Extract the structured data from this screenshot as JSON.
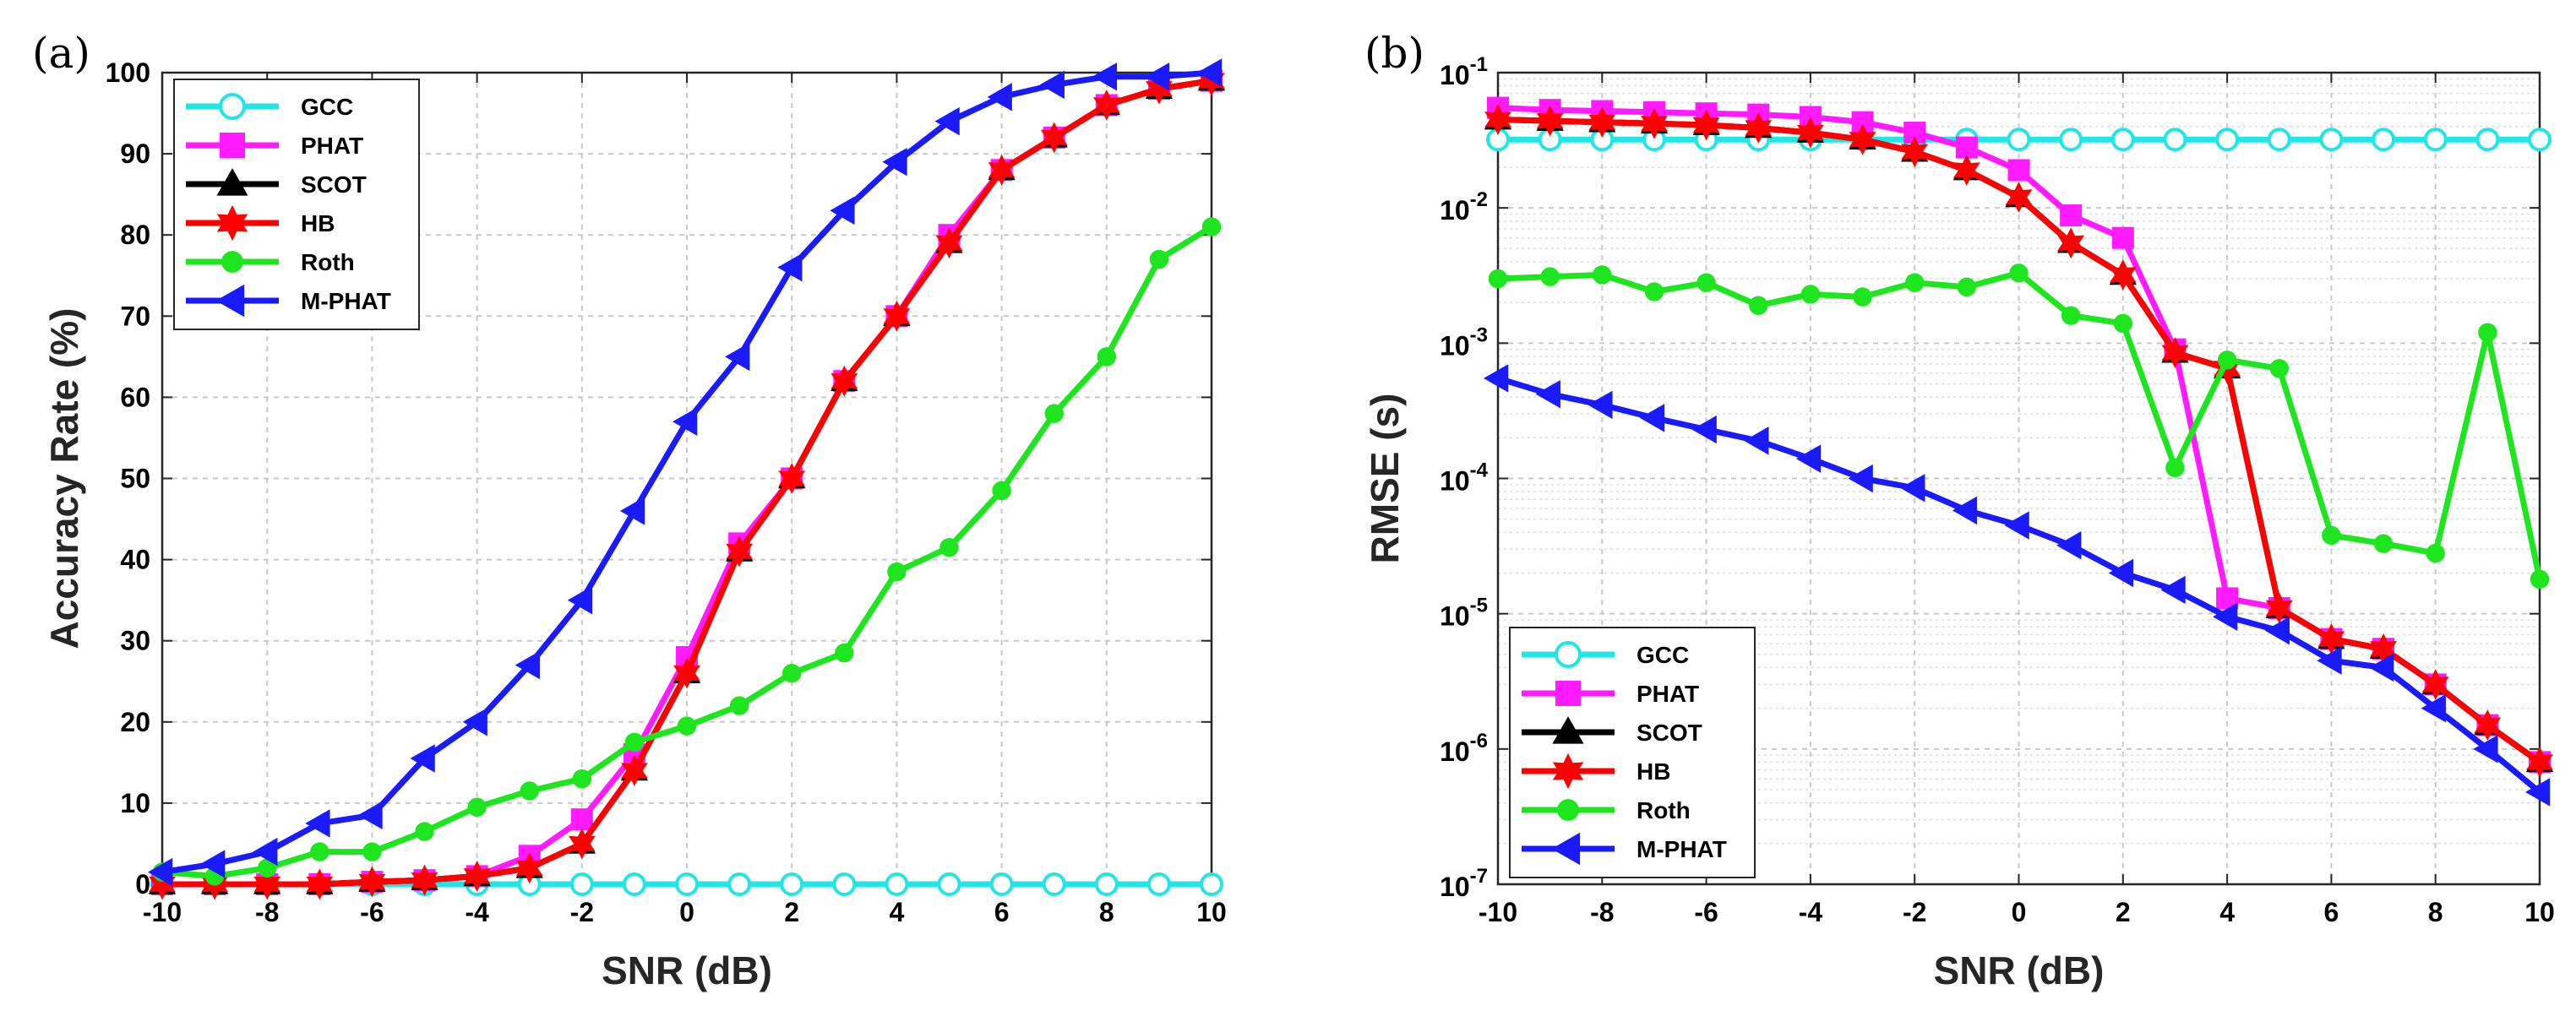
{
  "chart_data": [
    {
      "type": "line",
      "panel_label": "(a)",
      "xlabel": "SNR (dB)",
      "ylabel": "Accuracy Rate (%)",
      "xlim": [
        -10,
        10
      ],
      "ylim": [
        0,
        100
      ],
      "yscale": "linear",
      "grid": true,
      "legend_position": "top-left",
      "x": [
        -10,
        -9,
        -8,
        -7,
        -6,
        -5,
        -4,
        -3,
        -2,
        -1,
        0,
        1,
        2,
        3,
        4,
        5,
        6,
        7,
        8,
        9,
        10
      ],
      "xticks": [
        "-10",
        "-8",
        "-6",
        "-4",
        "-2",
        "0",
        "2",
        "4",
        "6",
        "8",
        "10"
      ],
      "yticks": [
        "0",
        "10",
        "20",
        "30",
        "40",
        "50",
        "60",
        "70",
        "80",
        "90",
        "100"
      ],
      "series": [
        {
          "name": "GCC",
          "color": "#22e5e5",
          "marker": "circle",
          "values": [
            0,
            0,
            0,
            0,
            0,
            0,
            0,
            0,
            0,
            0,
            0,
            0,
            0,
            0,
            0,
            0,
            0,
            0,
            0,
            0,
            0
          ]
        },
        {
          "name": "PHAT",
          "color": "#ff1aff",
          "marker": "square",
          "values": [
            0,
            0,
            0,
            0,
            0.3,
            0.5,
            1,
            3.5,
            8,
            16,
            28,
            42,
            50,
            62,
            70,
            80,
            88,
            92,
            96,
            98,
            99
          ]
        },
        {
          "name": "SCOT",
          "color": "#000000",
          "marker": "triangle-up",
          "values": [
            0,
            0,
            0,
            0,
            0.3,
            0.5,
            1,
            2,
            5,
            14,
            26,
            41,
            50,
            62,
            70,
            79,
            88,
            92,
            96,
            98,
            99
          ]
        },
        {
          "name": "HB",
          "color": "#ff0000",
          "marker": "hexagram",
          "values": [
            0,
            0,
            0,
            0,
            0.3,
            0.5,
            1,
            2,
            5,
            14,
            26,
            41,
            50,
            62,
            70,
            79,
            88,
            92,
            96,
            98,
            99
          ]
        },
        {
          "name": "Roth",
          "color": "#1ee61e",
          "marker": "dot",
          "values": [
            1.5,
            1,
            2,
            4,
            4,
            6.5,
            9.5,
            11.5,
            13,
            17.5,
            19.5,
            22,
            26,
            28.5,
            38.5,
            41.5,
            48.5,
            58,
            65,
            77,
            81
          ]
        },
        {
          "name": "M-PHAT",
          "color": "#1a1aff",
          "marker": "triangle-left",
          "values": [
            1.5,
            2.5,
            4,
            7.5,
            8.5,
            15.5,
            20,
            27,
            35,
            46,
            57,
            65,
            76,
            83,
            89,
            94,
            97,
            98.5,
            99.5,
            99.5,
            100
          ]
        }
      ]
    },
    {
      "type": "line",
      "panel_label": "(b)",
      "xlabel": "SNR (dB)",
      "ylabel": "RMSE (s)",
      "xlim": [
        -10,
        10
      ],
      "ylim": [
        1e-07,
        0.1
      ],
      "yscale": "log",
      "grid": true,
      "legend_position": "bottom-left",
      "x": [
        -10,
        -9,
        -8,
        -7,
        -6,
        -5,
        -4,
        -3,
        -2,
        -1,
        0,
        1,
        2,
        3,
        4,
        5,
        6,
        7,
        8,
        9,
        10
      ],
      "xticks": [
        "-10",
        "-8",
        "-6",
        "-4",
        "-2",
        "0",
        "2",
        "4",
        "6",
        "8",
        "10"
      ],
      "yticks": [
        {
          "base": "10",
          "exp": "-7"
        },
        {
          "base": "10",
          "exp": "-6"
        },
        {
          "base": "10",
          "exp": "-5"
        },
        {
          "base": "10",
          "exp": "-4"
        },
        {
          "base": "10",
          "exp": "-3"
        },
        {
          "base": "10",
          "exp": "-2"
        },
        {
          "base": "10",
          "exp": "-1"
        }
      ],
      "series": [
        {
          "name": "GCC",
          "color": "#22e5e5",
          "marker": "circle",
          "values": [
            0.032,
            0.032,
            0.032,
            0.032,
            0.032,
            0.032,
            0.032,
            0.032,
            0.032,
            0.032,
            0.032,
            0.032,
            0.032,
            0.032,
            0.032,
            0.032,
            0.032,
            0.032,
            0.032,
            0.032,
            0.032
          ]
        },
        {
          "name": "PHAT",
          "color": "#ff1aff",
          "marker": "square",
          "values": [
            0.055,
            0.053,
            0.052,
            0.051,
            0.05,
            0.049,
            0.047,
            0.043,
            0.036,
            0.028,
            0.019,
            0.0088,
            0.006,
            0.0009,
            1.3e-05,
            1.1e-05,
            6.5e-06,
            5.5e-06,
            3e-06,
            1.5e-06,
            8e-07
          ]
        },
        {
          "name": "SCOT",
          "color": "#000000",
          "marker": "triangle-up",
          "values": [
            0.045,
            0.044,
            0.043,
            0.042,
            0.041,
            0.039,
            0.036,
            0.032,
            0.026,
            0.019,
            0.012,
            0.0055,
            0.0032,
            0.00085,
            0.00065,
            1.1e-05,
            6.5e-06,
            5.5e-06,
            3e-06,
            1.5e-06,
            8e-07
          ]
        },
        {
          "name": "HB",
          "color": "#ff0000",
          "marker": "hexagram",
          "values": [
            0.045,
            0.044,
            0.043,
            0.042,
            0.041,
            0.039,
            0.036,
            0.032,
            0.026,
            0.019,
            0.012,
            0.0055,
            0.0032,
            0.00085,
            0.00065,
            1.1e-05,
            6.5e-06,
            5.5e-06,
            3e-06,
            1.5e-06,
            8e-07
          ]
        },
        {
          "name": "Roth",
          "color": "#1ee61e",
          "marker": "dot",
          "values": [
            0.003,
            0.0031,
            0.0032,
            0.0024,
            0.0028,
            0.0019,
            0.0023,
            0.0022,
            0.0028,
            0.0026,
            0.0033,
            0.0016,
            0.0014,
            0.00012,
            0.00075,
            0.00065,
            3.8e-05,
            3.3e-05,
            2.8e-05,
            0.0012,
            1.8e-05
          ]
        },
        {
          "name": "M-PHAT",
          "color": "#1a1aff",
          "marker": "triangle-left",
          "values": [
            0.00055,
            0.00042,
            0.00035,
            0.00028,
            0.00023,
            0.00019,
            0.00014,
            0.0001,
            8.5e-05,
            5.8e-05,
            4.5e-05,
            3.2e-05,
            2e-05,
            1.5e-05,
            9.5e-06,
            7.5e-06,
            4.5e-06,
            4e-06,
            2e-06,
            1e-06,
            4.8e-07
          ]
        }
      ]
    }
  ]
}
